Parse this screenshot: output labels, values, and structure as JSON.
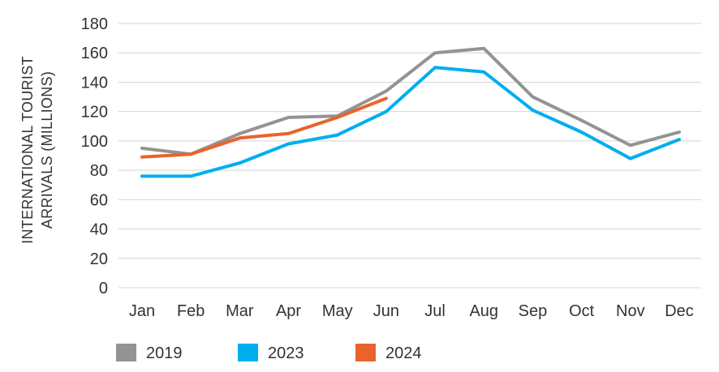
{
  "chart_data": {
    "type": "line",
    "title": "",
    "xlabel": "",
    "ylabel_lines": [
      "INTERNATIONAL TOURIST",
      "ARRIVALS (MILLIONS)"
    ],
    "categories": [
      "Jan",
      "Feb",
      "Mar",
      "Apr",
      "May",
      "Jun",
      "Jul",
      "Aug",
      "Sep",
      "Oct",
      "Nov",
      "Dec"
    ],
    "yticks": [
      0,
      20,
      40,
      60,
      80,
      100,
      120,
      140,
      160,
      180
    ],
    "ylim": [
      0,
      180
    ],
    "grid": true,
    "legend_position": "bottom",
    "series": [
      {
        "name": "2019",
        "color": "#939393",
        "values": [
          95,
          91,
          105,
          116,
          117,
          134,
          160,
          163,
          130,
          114,
          97,
          106
        ]
      },
      {
        "name": "2023",
        "color": "#00aeef",
        "values": [
          76,
          76,
          85,
          98,
          104,
          120,
          150,
          147,
          121,
          106,
          88,
          101
        ]
      },
      {
        "name": "2024",
        "color": "#e8642c",
        "values": [
          89,
          91,
          102,
          105,
          116,
          129,
          null,
          null,
          null,
          null,
          null,
          null
        ]
      }
    ]
  }
}
